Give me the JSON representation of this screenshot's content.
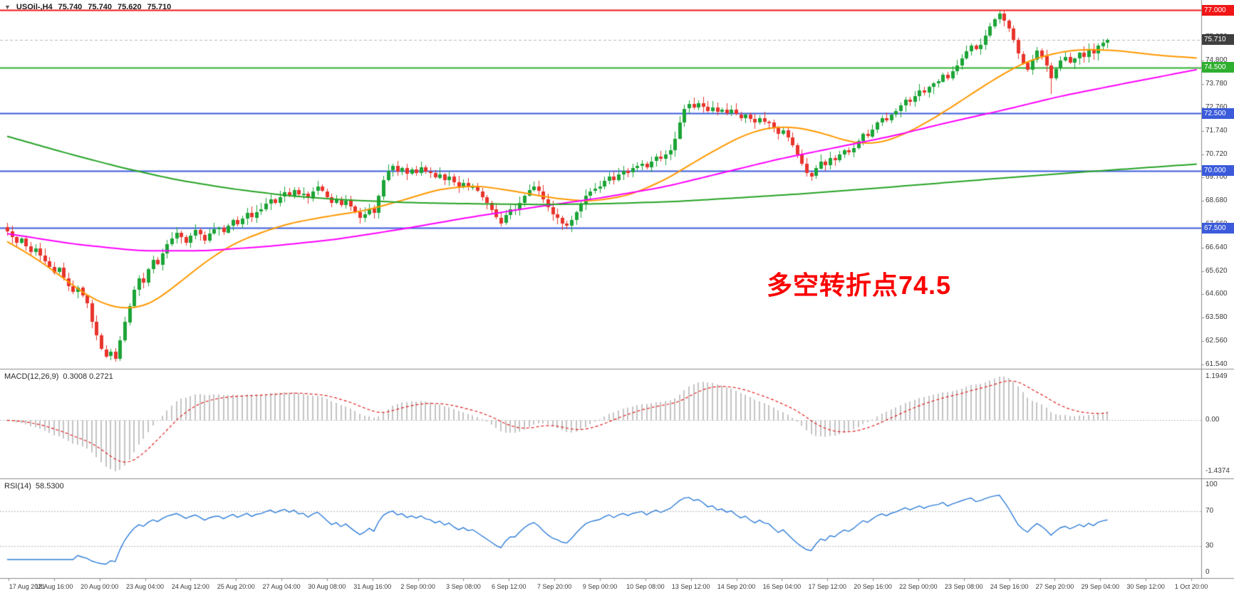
{
  "header": {
    "symbol_period": "USOil-,H4",
    "open": "75.740",
    "high": "75.740",
    "low": "75.620",
    "close": "75.710"
  },
  "indicators": {
    "macd": {
      "label": "MACD(12,26,9)",
      "values": "0.3008 0.2721",
      "scale_top": "1.1949",
      "scale_zero": "0.00",
      "scale_bottom": "-1.4374"
    },
    "rsi": {
      "label": "RSI(14)",
      "value": "58.5300",
      "scale_labels": [
        "100",
        "70",
        "30",
        "0"
      ]
    }
  },
  "annotation": {
    "text": "多空转折点74.5",
    "color": "#fb0200"
  },
  "price_axis": {
    "ticks": [
      "76.840",
      "75.820",
      "74.800",
      "73.780",
      "72.760",
      "71.740",
      "70.720",
      "69.700",
      "68.680",
      "67.660",
      "66.640",
      "65.620",
      "64.600",
      "63.580",
      "62.560",
      "61.540"
    ],
    "badges": [
      {
        "price": 77.0,
        "label": "77.000",
        "color": "#f21616",
        "type": "resistance-line"
      },
      {
        "price": 75.71,
        "label": "75.710",
        "color": "#3f3f3f",
        "type": "current-price"
      },
      {
        "price": 74.5,
        "label": "74.500",
        "color": "#2faf2f",
        "type": "pivot-line"
      },
      {
        "price": 72.5,
        "label": "72.500",
        "color": "#3b5bdb",
        "type": "support-line"
      },
      {
        "price": 70.0,
        "label": "70.000",
        "color": "#3b5bdb",
        "type": "support-line"
      },
      {
        "price": 67.5,
        "label": "67.500",
        "color": "#3b5bdb",
        "type": "support-line"
      }
    ]
  },
  "time_axis": {
    "labels": [
      "17 Aug 2021",
      "18 Aug 16:00",
      "20 Aug 00:00",
      "23 Aug 04:00",
      "24 Aug 12:00",
      "25 Aug 20:00",
      "27 Aug 04:00",
      "30 Aug 08:00",
      "31 Aug 16:00",
      "2 Sep 00:00",
      "3 Sep 08:00",
      "6 Sep 12:00",
      "7 Sep 20:00",
      "9 Sep 00:00",
      "10 Sep 08:00",
      "13 Sep 12:00",
      "14 Sep 20:00",
      "16 Sep 04:00",
      "17 Sep 12:00",
      "20 Sep 16:00",
      "22 Sep 00:00",
      "23 Sep 08:00",
      "24 Sep 16:00",
      "27 Sep 20:00",
      "29 Sep 04:00",
      "30 Sep 12:00",
      "1 Oct 20:00"
    ]
  },
  "chart_data": {
    "type": "candlestick",
    "symbol": "USOil",
    "timeframe": "H4",
    "ohlc_current": {
      "open": 75.74,
      "high": 75.74,
      "low": 75.62,
      "close": 75.71
    },
    "price_range": {
      "min": 61.54,
      "max": 77.0,
      "tick_interval": 1.02
    },
    "first_open": 67.55,
    "closes": [
      67.35,
      67.1,
      66.85,
      67.05,
      66.7,
      66.45,
      66.6,
      66.3,
      66.05,
      65.8,
      65.55,
      65.75,
      65.3,
      64.95,
      64.7,
      64.9,
      64.55,
      64.2,
      63.4,
      62.8,
      62.2,
      61.9,
      62.1,
      61.8,
      62.6,
      63.4,
      64.1,
      64.8,
      65.3,
      65.1,
      65.7,
      66.1,
      65.9,
      66.4,
      66.8,
      67.05,
      67.3,
      67.1,
      66.85,
      67.15,
      67.4,
      67.2,
      66.95,
      67.25,
      67.45,
      67.5,
      67.3,
      67.6,
      67.85,
      67.65,
      67.9,
      68.15,
      67.95,
      68.2,
      68.3,
      68.55,
      68.75,
      68.6,
      68.85,
      69.05,
      68.9,
      69.15,
      68.95,
      69.0,
      68.8,
      69.1,
      69.3,
      69.1,
      68.85,
      68.6,
      68.75,
      68.5,
      68.7,
      68.45,
      68.2,
      67.95,
      68.1,
      68.35,
      68.15,
      68.9,
      69.6,
      70.0,
      70.2,
      69.95,
      70.1,
      69.85,
      70.05,
      69.9,
      70.15,
      69.95,
      69.9,
      69.7,
      69.85,
      69.6,
      69.75,
      69.5,
      69.3,
      69.45,
      69.25,
      69.3,
      69.1,
      68.85,
      68.6,
      68.3,
      67.95,
      67.7,
      68.05,
      68.3,
      68.3,
      68.6,
      68.9,
      69.15,
      69.3,
      69.1,
      68.75,
      68.4,
      68.1,
      67.95,
      67.7,
      67.6,
      67.85,
      68.2,
      68.55,
      68.9,
      69.1,
      69.2,
      69.3,
      69.55,
      69.75,
      69.6,
      69.85,
      70.0,
      69.9,
      70.1,
      70.2,
      70.3,
      70.15,
      70.4,
      70.6,
      70.5,
      70.7,
      70.9,
      71.4,
      72.1,
      72.7,
      72.9,
      72.75,
      72.95,
      72.8,
      72.6,
      72.75,
      72.55,
      72.65,
      72.5,
      72.65,
      72.45,
      72.3,
      72.45,
      72.25,
      72.1,
      72.3,
      72.15,
      72.1,
      71.85,
      71.6,
      71.75,
      71.45,
      71.1,
      70.7,
      70.3,
      69.9,
      69.75,
      70.1,
      70.4,
      70.25,
      70.55,
      70.45,
      70.7,
      70.9,
      70.8,
      71.0,
      71.3,
      71.6,
      71.5,
      71.8,
      72.1,
      72.3,
      72.2,
      72.45,
      72.6,
      72.85,
      73.1,
      73.0,
      73.25,
      73.5,
      73.4,
      73.65,
      73.8,
      73.9,
      74.2,
      74.05,
      74.35,
      74.6,
      74.9,
      75.2,
      75.45,
      75.3,
      75.5,
      75.9,
      76.3,
      76.6,
      76.85,
      76.55,
      76.2,
      75.7,
      75.1,
      74.7,
      74.4,
      74.85,
      75.25,
      75.0,
      74.6,
      74.05,
      74.45,
      74.8,
      74.95,
      74.7,
      74.9,
      75.15,
      74.95,
      75.3,
      75.1,
      75.45,
      75.6,
      75.71
    ],
    "extremes": {
      "low_index": 23,
      "low_price": 61.74,
      "high_index": 211,
      "high_price": 76.95,
      "spike_low_index": 222,
      "spike_low_price": 73.35
    },
    "hlines": [
      {
        "price": 77.0,
        "color": "#f21616",
        "width": 2,
        "dashed": false
      },
      {
        "price": 74.5,
        "color": "#2faf2f",
        "width": 2,
        "dashed": false
      },
      {
        "price": 72.5,
        "color": "#3b5bdb",
        "width": 2,
        "dashed": false
      },
      {
        "price": 70.0,
        "color": "#3b5bdb",
        "width": 2,
        "dashed": false
      },
      {
        "price": 67.5,
        "color": "#3b5bdb",
        "width": 2,
        "dashed": false
      },
      {
        "price": 75.71,
        "color": "#b8b8b8",
        "width": 1,
        "dashed": true
      }
    ],
    "moving_averages": [
      {
        "name": "ma-fast-orange",
        "color": "#ff9800",
        "points": [
          [
            0,
            66.9
          ],
          [
            6,
            66.2
          ],
          [
            12,
            65.3
          ],
          [
            18,
            64.4
          ],
          [
            24,
            63.95
          ],
          [
            30,
            64.1
          ],
          [
            36,
            65.0
          ],
          [
            42,
            66.0
          ],
          [
            48,
            66.8
          ],
          [
            54,
            67.3
          ],
          [
            60,
            67.7
          ],
          [
            68,
            68.0
          ],
          [
            76,
            68.25
          ],
          [
            84,
            68.7
          ],
          [
            92,
            69.2
          ],
          [
            100,
            69.35
          ],
          [
            108,
            69.1
          ],
          [
            116,
            68.8
          ],
          [
            124,
            68.65
          ],
          [
            132,
            68.9
          ],
          [
            140,
            69.6
          ],
          [
            148,
            70.6
          ],
          [
            156,
            71.5
          ],
          [
            162,
            71.9
          ],
          [
            168,
            71.9
          ],
          [
            174,
            71.6
          ],
          [
            180,
            71.2
          ],
          [
            186,
            71.2
          ],
          [
            192,
            71.7
          ],
          [
            198,
            72.4
          ],
          [
            204,
            73.2
          ],
          [
            210,
            74.0
          ],
          [
            216,
            74.7
          ],
          [
            222,
            75.1
          ],
          [
            228,
            75.3
          ],
          [
            236,
            75.25
          ],
          [
            244,
            75.05
          ],
          [
            254,
            74.9
          ]
        ]
      },
      {
        "name": "ma-mid-magenta",
        "color": "#ff00ff",
        "points": [
          [
            0,
            67.25
          ],
          [
            14,
            66.8
          ],
          [
            28,
            66.5
          ],
          [
            42,
            66.5
          ],
          [
            56,
            66.7
          ],
          [
            70,
            67.0
          ],
          [
            84,
            67.45
          ],
          [
            98,
            67.95
          ],
          [
            112,
            68.4
          ],
          [
            126,
            68.8
          ],
          [
            140,
            69.3
          ],
          [
            152,
            69.9
          ],
          [
            164,
            70.5
          ],
          [
            176,
            71.0
          ],
          [
            188,
            71.5
          ],
          [
            200,
            72.1
          ],
          [
            212,
            72.65
          ],
          [
            224,
            73.25
          ],
          [
            240,
            73.9
          ],
          [
            254,
            74.45
          ]
        ]
      },
      {
        "name": "ma-slow-green",
        "color": "#26a326",
        "points": [
          [
            0,
            71.5
          ],
          [
            12,
            70.8
          ],
          [
            24,
            70.15
          ],
          [
            36,
            69.6
          ],
          [
            48,
            69.2
          ],
          [
            60,
            68.9
          ],
          [
            72,
            68.72
          ],
          [
            86,
            68.6
          ],
          [
            100,
            68.55
          ],
          [
            114,
            68.52
          ],
          [
            128,
            68.56
          ],
          [
            142,
            68.65
          ],
          [
            156,
            68.82
          ],
          [
            170,
            69.0
          ],
          [
            184,
            69.22
          ],
          [
            198,
            69.45
          ],
          [
            212,
            69.68
          ],
          [
            226,
            69.9
          ],
          [
            240,
            70.1
          ],
          [
            254,
            70.3
          ]
        ]
      }
    ],
    "macd": {
      "fast": 12,
      "slow": 26,
      "signal": 9,
      "current_macd": 0.3008,
      "current_signal": 0.2721,
      "range": [
        -1.4374,
        1.1949
      ]
    },
    "rsi": {
      "period": 14,
      "current": 58.53,
      "levels": [
        70,
        30
      ],
      "range": [
        0,
        100
      ]
    },
    "colors": {
      "up": "#1ca437",
      "down": "#e8342c",
      "macd_hist": "#c4c4c4",
      "macd_signal": "#e02020",
      "rsi": "#2f7ed8",
      "background": "#ffffff",
      "axis_text": "#3c3c3c"
    }
  }
}
